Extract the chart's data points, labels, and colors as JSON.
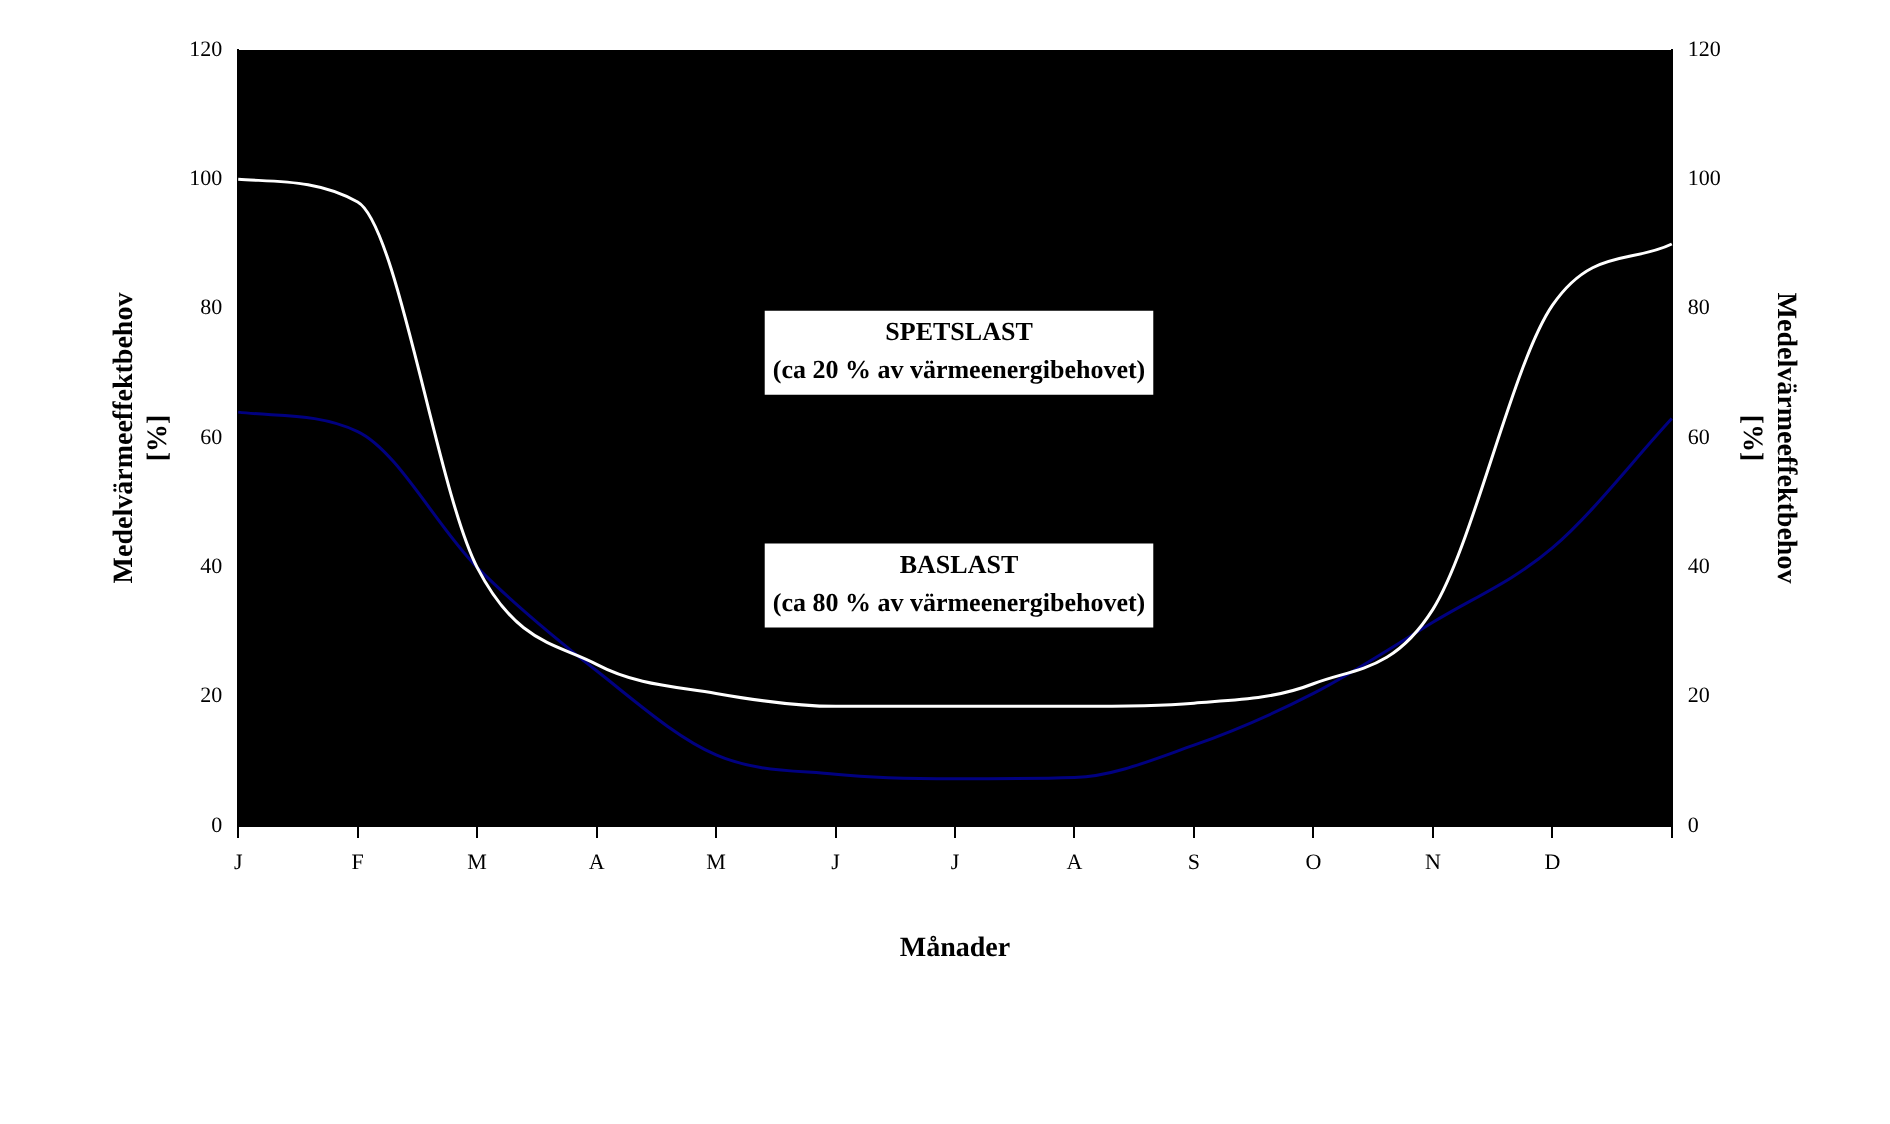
{
  "chart_data": {
    "type": "line",
    "xlabel": "Månader",
    "ylabel": "Medelvärmeeffektbehov\n[%]",
    "y2label": "Medelvärmeeffektbehov\n[%]",
    "categories": [
      "J",
      "F",
      "M",
      "A",
      "M",
      "J",
      "J",
      "A",
      "S",
      "O",
      "N",
      "D",
      null
    ],
    "series": [
      {
        "color": "#ffffff",
        "values": [
          100,
          96.5,
          40,
          25,
          20.5,
          18.5,
          18.5,
          18.5,
          19,
          22,
          33.5,
          80.5,
          90
        ]
      },
      {
        "color": "#000080",
        "values": [
          64,
          61,
          40,
          24,
          11,
          8,
          7.3,
          7.5,
          12.5,
          20.5,
          31.5,
          43,
          63
        ]
      }
    ],
    "ylim": [
      0,
      120
    ],
    "yticks": [
      0,
      20,
      40,
      60,
      80,
      100,
      120
    ],
    "y2lim": [
      0,
      120
    ],
    "y2ticks": [
      0,
      20,
      40,
      60,
      80,
      100,
      120
    ],
    "annotations": [
      "SPETSLAST\n(ca 20 % av värmeenergibehovet)",
      "BASLAST\n(ca 80 % av värmeenergibehovet)"
    ],
    "grid": false,
    "legend": false,
    "marker": "none",
    "line_style": "solid"
  }
}
